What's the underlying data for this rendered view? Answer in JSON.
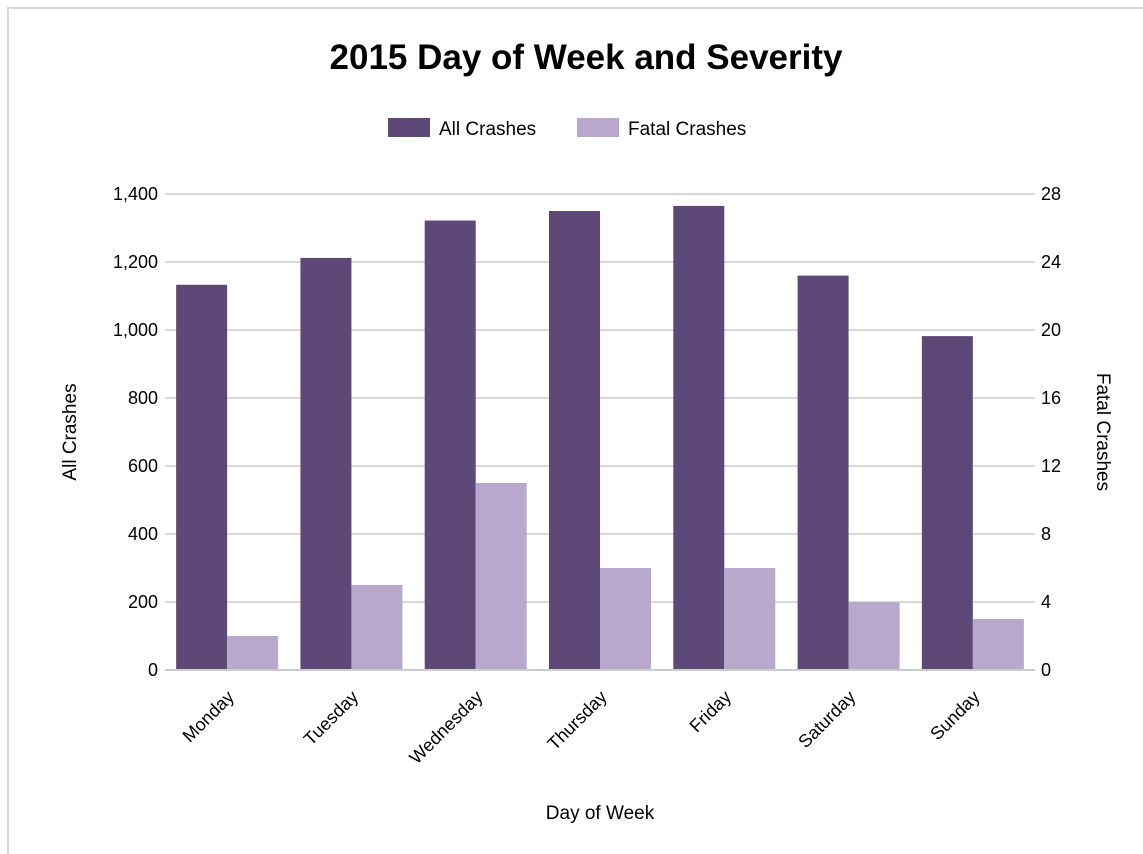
{
  "chart_data": {
    "type": "bar",
    "title": "2015 Day of Week and Severity",
    "xlabel": "Day of Week",
    "ylabel": "All Crashes",
    "y2label": "Fatal Crashes",
    "categories": [
      "Monday",
      "Tuesday",
      "Wednesday",
      "Thursday",
      "Friday",
      "Saturday",
      "Sunday"
    ],
    "series": [
      {
        "name": "All Crashes",
        "axis": "left",
        "color": "#5e4878",
        "values": [
          1133,
          1212,
          1322,
          1350,
          1365,
          1160,
          982
        ]
      },
      {
        "name": "Fatal Crashes",
        "axis": "right",
        "color": "#b8a8cb",
        "values": [
          2,
          5,
          11,
          6,
          6,
          4,
          3
        ]
      }
    ],
    "ylim": [
      0,
      1400
    ],
    "y2lim": [
      0,
      28
    ],
    "yticks": [
      "0",
      "200",
      "400",
      "600",
      "800",
      "1,000",
      "1,200",
      "1,400"
    ],
    "y2ticks": [
      "0",
      "4",
      "8",
      "12",
      "16",
      "20",
      "24",
      "28"
    ],
    "grid": true,
    "legend_position": "top-center"
  }
}
